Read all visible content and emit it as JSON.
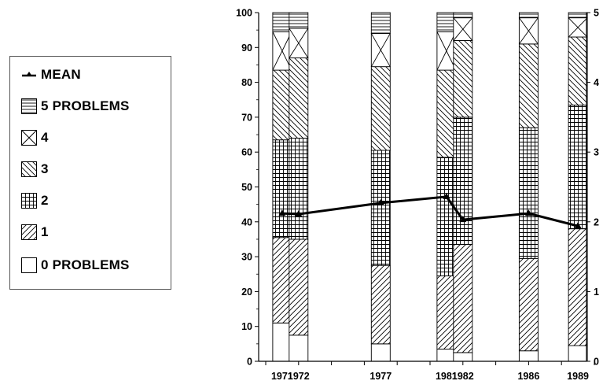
{
  "chart_data": {
    "type": "bar",
    "stacked": true,
    "title": "",
    "xlabel": "",
    "ylabel": "",
    "categories": [
      "1971",
      "1972",
      "1977",
      "1981",
      "1982",
      "1986",
      "1989"
    ],
    "ylim": [
      0,
      100
    ],
    "yticks": [
      "0",
      "10",
      "20",
      "30",
      "40",
      "50",
      "60",
      "70",
      "80",
      "90",
      "100"
    ],
    "y2lim": [
      0,
      5
    ],
    "y2ticks": [
      "0",
      "1",
      "2",
      "3",
      "4",
      "5"
    ],
    "series": [
      {
        "name": "0 PROBLEMS",
        "pattern": "blank",
        "values": [
          11,
          7.5,
          5,
          3.5,
          2.5,
          3,
          4.5
        ]
      },
      {
        "name": "1",
        "pattern": "diagonal-up",
        "values": [
          24.5,
          27.5,
          22.5,
          21,
          31,
          26.5,
          33.5
        ]
      },
      {
        "name": "2",
        "pattern": "grid",
        "values": [
          28,
          29,
          33,
          34,
          36.5,
          37.5,
          35.5
        ]
      },
      {
        "name": "3",
        "pattern": "diagonal-down",
        "values": [
          20,
          23,
          24,
          25,
          22,
          24,
          19.5
        ]
      },
      {
        "name": "4",
        "pattern": "crosshatch-box",
        "values": [
          11,
          8.5,
          9.5,
          11,
          6.5,
          7.5,
          5.5
        ]
      },
      {
        "name": "5 PROBLEMS",
        "pattern": "horizontal",
        "values": [
          5.5,
          4.5,
          6,
          5.5,
          1.5,
          1.5,
          1.5
        ]
      }
    ],
    "mean": {
      "name": "MEAN",
      "axis": "right",
      "values": [
        2.12,
        2.11,
        2.27,
        2.36,
        2.03,
        2.12,
        1.94
      ]
    },
    "legend_position": "left-outside",
    "grid": false
  },
  "legend": {
    "items": [
      {
        "key": "mean",
        "label": "MEAN"
      },
      {
        "key": "s5",
        "label": "5 PROBLEMS"
      },
      {
        "key": "s4",
        "label": "4"
      },
      {
        "key": "s3",
        "label": "3"
      },
      {
        "key": "s2",
        "label": "2"
      },
      {
        "key": "s1",
        "label": "1"
      },
      {
        "key": "s0",
        "label": "0 PROBLEMS"
      }
    ]
  }
}
